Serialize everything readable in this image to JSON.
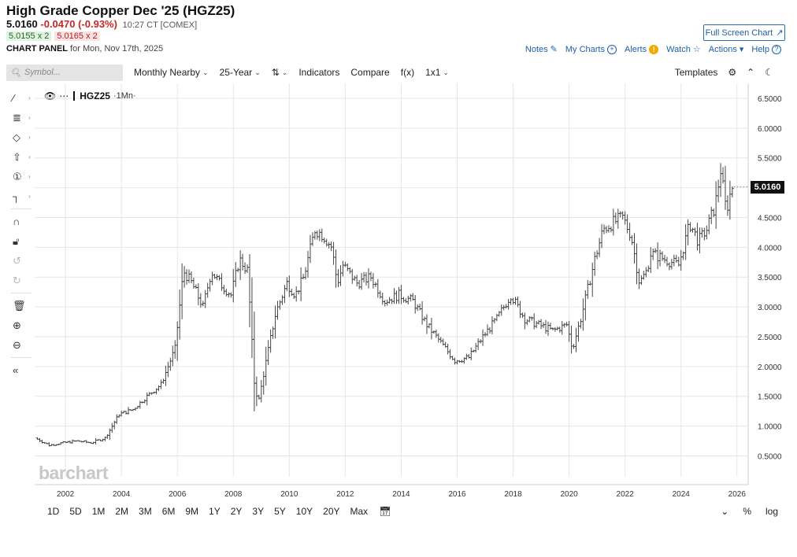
{
  "header": {
    "title": "High Grade Copper Dec '25 (HGZ25)",
    "last": "5.0160",
    "change": "-0.0470 (-0.93%)",
    "time": "10:27 CT [COMEX]",
    "bid": "5.0155 x 2",
    "ask": "5.0165 x 2",
    "panel_label": "CHART PANEL",
    "panel_date": "for Mon, Nov 17th, 2025",
    "fullscreen": "Full Screen Chart"
  },
  "toplinks": {
    "notes": "Notes",
    "mycharts": "My Charts",
    "alerts": "Alerts",
    "watch": "Watch",
    "actions": "Actions",
    "help": "Help"
  },
  "toolbar": {
    "search_placeholder": "Symbol...",
    "period": "Monthly Nearby",
    "range": "25-Year",
    "indicators": "Indicators",
    "compare": "Compare",
    "fx": "f(x)",
    "layout": "1x1",
    "templates": "Templates"
  },
  "legend": {
    "symbol": "HGZ25",
    "period": "·1Mn·"
  },
  "price_tag": "5.0160",
  "watermark": "barchart",
  "bottombar": {
    "ranges": [
      "1D",
      "5D",
      "1M",
      "2M",
      "3M",
      "6M",
      "9M",
      "1Y",
      "2Y",
      "3Y",
      "5Y",
      "10Y",
      "20Y",
      "Max"
    ],
    "percent": "%",
    "log": "log"
  },
  "colors": {
    "bars": "#444444",
    "grid": "#e6e6e6",
    "accent": "#1f5fa8",
    "down": "#c62828"
  },
  "chart_data": {
    "type": "ohlc",
    "title": "",
    "xlabel": "",
    "ylabel": "",
    "xlim": [
      2000.9,
      2026.4
    ],
    "ylim": [
      0.15,
      6.75
    ],
    "x_ticks": [
      2002,
      2004,
      2006,
      2008,
      2010,
      2012,
      2014,
      2016,
      2018,
      2020,
      2022,
      2024,
      2026
    ],
    "y_ticks": [
      "0.5000",
      "1.0000",
      "1.5000",
      "2.0000",
      "2.5000",
      "3.0000",
      "3.5000",
      "4.0000",
      "4.5000",
      "5.0000",
      "5.5000",
      "6.0000",
      "6.5000"
    ],
    "grid": true,
    "last_price": 5.016,
    "series": [
      {
        "x": [
          2001.0,
          2001.5,
          2002.0,
          2002.5,
          2003.0,
          2003.5,
          2004.0,
          2004.5,
          2005.0,
          2005.5,
          2006.0,
          2006.3,
          2006.6,
          2007.0,
          2007.3,
          2007.6,
          2008.0,
          2008.3,
          2008.6,
          2008.85,
          2009.0,
          2009.3,
          2009.6,
          2010.0,
          2010.3,
          2010.6,
          2011.0,
          2011.3,
          2011.6,
          2011.8,
          2012.0,
          2012.5,
          2013.0,
          2013.5,
          2014.0,
          2014.5,
          2015.0,
          2015.5,
          2016.0,
          2016.5,
          2017.0,
          2017.5,
          2018.0,
          2018.5,
          2019.0,
          2019.5,
          2020.0,
          2020.2,
          2020.5,
          2021.0,
          2021.3,
          2021.6,
          2022.0,
          2022.3,
          2022.6,
          2022.85,
          2023.0,
          2023.5,
          2024.0,
          2024.4,
          2024.7,
          2025.0,
          2025.3,
          2025.5,
          2025.7,
          2025.9
        ],
        "values": [
          0.8,
          0.68,
          0.72,
          0.75,
          0.72,
          0.8,
          1.2,
          1.28,
          1.5,
          1.7,
          2.3,
          3.6,
          3.4,
          3.0,
          3.6,
          3.4,
          3.2,
          3.8,
          3.6,
          1.6,
          1.45,
          2.2,
          2.9,
          3.4,
          3.2,
          3.5,
          4.3,
          4.2,
          4.0,
          3.4,
          3.7,
          3.4,
          3.5,
          3.1,
          3.2,
          3.1,
          2.7,
          2.4,
          2.1,
          2.15,
          2.5,
          2.8,
          3.2,
          2.8,
          2.7,
          2.6,
          2.7,
          2.3,
          2.8,
          3.8,
          4.3,
          4.4,
          4.5,
          4.2,
          3.4,
          3.6,
          3.9,
          3.8,
          3.7,
          4.4,
          4.1,
          4.3,
          4.7,
          5.3,
          4.6,
          5.02
        ]
      }
    ]
  }
}
